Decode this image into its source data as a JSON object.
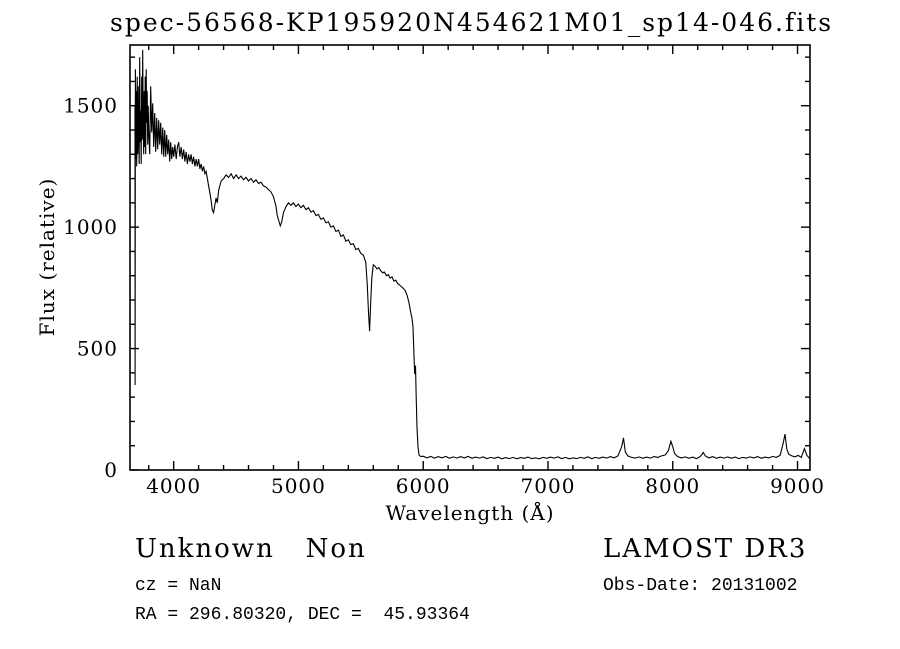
{
  "title": "spec-56568-KP195920N454621M01_sp14-046.fits",
  "axes": {
    "xlabel": "Wavelength (Å)",
    "ylabel": "Flux (relative)"
  },
  "annotations": {
    "object_class": "Unknown   Non",
    "cz": "cz = NaN",
    "ra_dec": "RA = 296.80320, DEC =  45.93364",
    "survey": "LAMOST DR3",
    "obs_date": "Obs-Date: 20131002"
  },
  "chart_data": {
    "type": "line",
    "title": "spec-56568-KP195920N454621M01_sp14-046.fits",
    "xlabel": "Wavelength (Å)",
    "ylabel": "Flux (relative)",
    "xlim": [
      3650,
      9100
    ],
    "ylim": [
      0,
      1750
    ],
    "grid": false,
    "legend": "none",
    "line_color": "#000000",
    "x_major_ticks": [
      4000,
      5000,
      6000,
      7000,
      8000,
      9000
    ],
    "x_minor_step": 200,
    "y_major_ticks": [
      0,
      500,
      1000,
      1500
    ],
    "y_minor_step": 100,
    "points": [
      [
        3690,
        1500
      ],
      [
        3691,
        350
      ],
      [
        3693,
        1650
      ],
      [
        3697,
        1280
      ],
      [
        3700,
        1560
      ],
      [
        3704,
        1250
      ],
      [
        3708,
        1620
      ],
      [
        3712,
        1300
      ],
      [
        3716,
        1580
      ],
      [
        3720,
        1380
      ],
      [
        3724,
        1260
      ],
      [
        3728,
        1700
      ],
      [
        3732,
        1350
      ],
      [
        3736,
        1480
      ],
      [
        3740,
        1260
      ],
      [
        3744,
        1620
      ],
      [
        3748,
        1360
      ],
      [
        3752,
        1730
      ],
      [
        3756,
        1420
      ],
      [
        3760,
        1300
      ],
      [
        3764,
        1560
      ],
      [
        3768,
        1330
      ],
      [
        3772,
        1620
      ],
      [
        3776,
        1300
      ],
      [
        3780,
        1650
      ],
      [
        3784,
        1430
      ],
      [
        3788,
        1560
      ],
      [
        3792,
        1340
      ],
      [
        3796,
        1500
      ],
      [
        3800,
        1400
      ],
      [
        3808,
        1300
      ],
      [
        3816,
        1580
      ],
      [
        3824,
        1390
      ],
      [
        3832,
        1510
      ],
      [
        3840,
        1330
      ],
      [
        3848,
        1470
      ],
      [
        3856,
        1310
      ],
      [
        3864,
        1450
      ],
      [
        3872,
        1320
      ],
      [
        3880,
        1440
      ],
      [
        3888,
        1340
      ],
      [
        3896,
        1430
      ],
      [
        3904,
        1300
      ],
      [
        3912,
        1410
      ],
      [
        3920,
        1290
      ],
      [
        3928,
        1400
      ],
      [
        3936,
        1290
      ],
      [
        3944,
        1380
      ],
      [
        3952,
        1300
      ],
      [
        3960,
        1360
      ],
      [
        3968,
        1270
      ],
      [
        3976,
        1350
      ],
      [
        3984,
        1280
      ],
      [
        3992,
        1330
      ],
      [
        4000,
        1290
      ],
      [
        4010,
        1340
      ],
      [
        4020,
        1280
      ],
      [
        4030,
        1330
      ],
      [
        4040,
        1350
      ],
      [
        4050,
        1290
      ],
      [
        4060,
        1330
      ],
      [
        4070,
        1280
      ],
      [
        4080,
        1320
      ],
      [
        4090,
        1270
      ],
      [
        4100,
        1310
      ],
      [
        4110,
        1260
      ],
      [
        4120,
        1300
      ],
      [
        4130,
        1270
      ],
      [
        4140,
        1300
      ],
      [
        4150,
        1260
      ],
      [
        4160,
        1290
      ],
      [
        4170,
        1250
      ],
      [
        4180,
        1280
      ],
      [
        4190,
        1250
      ],
      [
        4200,
        1280
      ],
      [
        4210,
        1240
      ],
      [
        4220,
        1260
      ],
      [
        4230,
        1230
      ],
      [
        4240,
        1250
      ],
      [
        4250,
        1220
      ],
      [
        4260,
        1230
      ],
      [
        4270,
        1200
      ],
      [
        4280,
        1170
      ],
      [
        4290,
        1140
      ],
      [
        4300,
        1110
      ],
      [
        4310,
        1070
      ],
      [
        4320,
        1060
      ],
      [
        4330,
        1090
      ],
      [
        4340,
        1120
      ],
      [
        4350,
        1100
      ],
      [
        4360,
        1150
      ],
      [
        4370,
        1170
      ],
      [
        4380,
        1190
      ],
      [
        4400,
        1200
      ],
      [
        4420,
        1215
      ],
      [
        4440,
        1205
      ],
      [
        4460,
        1220
      ],
      [
        4480,
        1200
      ],
      [
        4500,
        1215
      ],
      [
        4520,
        1200
      ],
      [
        4540,
        1210
      ],
      [
        4560,
        1195
      ],
      [
        4580,
        1205
      ],
      [
        4600,
        1190
      ],
      [
        4620,
        1200
      ],
      [
        4640,
        1185
      ],
      [
        4660,
        1195
      ],
      [
        4680,
        1180
      ],
      [
        4700,
        1185
      ],
      [
        4720,
        1170
      ],
      [
        4740,
        1165
      ],
      [
        4760,
        1155
      ],
      [
        4780,
        1145
      ],
      [
        4800,
        1125
      ],
      [
        4820,
        1085
      ],
      [
        4830,
        1050
      ],
      [
        4840,
        1030
      ],
      [
        4855,
        1005
      ],
      [
        4865,
        1020
      ],
      [
        4880,
        1060
      ],
      [
        4900,
        1085
      ],
      [
        4920,
        1100
      ],
      [
        4940,
        1090
      ],
      [
        4960,
        1100
      ],
      [
        4980,
        1085
      ],
      [
        5000,
        1095
      ],
      [
        5020,
        1080
      ],
      [
        5040,
        1090
      ],
      [
        5060,
        1072
      ],
      [
        5080,
        1080
      ],
      [
        5100,
        1062
      ],
      [
        5120,
        1068
      ],
      [
        5140,
        1048
      ],
      [
        5160,
        1052
      ],
      [
        5180,
        1032
      ],
      [
        5200,
        1038
      ],
      [
        5220,
        1018
      ],
      [
        5240,
        1022
      ],
      [
        5260,
        1000
      ],
      [
        5280,
        1005
      ],
      [
        5300,
        982
      ],
      [
        5320,
        988
      ],
      [
        5340,
        962
      ],
      [
        5360,
        968
      ],
      [
        5380,
        942
      ],
      [
        5400,
        948
      ],
      [
        5420,
        928
      ],
      [
        5440,
        932
      ],
      [
        5460,
        908
      ],
      [
        5480,
        912
      ],
      [
        5500,
        892
      ],
      [
        5520,
        885
      ],
      [
        5540,
        855
      ],
      [
        5552,
        760
      ],
      [
        5562,
        640
      ],
      [
        5570,
        572
      ],
      [
        5578,
        680
      ],
      [
        5588,
        790
      ],
      [
        5600,
        845
      ],
      [
        5615,
        838
      ],
      [
        5630,
        828
      ],
      [
        5645,
        833
      ],
      [
        5660,
        820
      ],
      [
        5675,
        812
      ],
      [
        5690,
        815
      ],
      [
        5705,
        800
      ],
      [
        5720,
        805
      ],
      [
        5735,
        790
      ],
      [
        5750,
        795
      ],
      [
        5765,
        778
      ],
      [
        5780,
        782
      ],
      [
        5795,
        768
      ],
      [
        5810,
        762
      ],
      [
        5825,
        755
      ],
      [
        5840,
        748
      ],
      [
        5855,
        740
      ],
      [
        5870,
        720
      ],
      [
        5885,
        690
      ],
      [
        5900,
        650
      ],
      [
        5910,
        625
      ],
      [
        5918,
        590
      ],
      [
        5925,
        480
      ],
      [
        5932,
        395
      ],
      [
        5938,
        430
      ],
      [
        5944,
        300
      ],
      [
        5950,
        175
      ],
      [
        5958,
        95
      ],
      [
        5966,
        62
      ],
      [
        5980,
        55
      ],
      [
        6000,
        57
      ],
      [
        6030,
        50
      ],
      [
        6060,
        56
      ],
      [
        6090,
        49
      ],
      [
        6120,
        55
      ],
      [
        6150,
        50
      ],
      [
        6180,
        56
      ],
      [
        6210,
        48
      ],
      [
        6240,
        54
      ],
      [
        6270,
        49
      ],
      [
        6300,
        55
      ],
      [
        6330,
        50
      ],
      [
        6360,
        56
      ],
      [
        6390,
        48
      ],
      [
        6420,
        53
      ],
      [
        6450,
        49
      ],
      [
        6480,
        54
      ],
      [
        6510,
        47
      ],
      [
        6540,
        52
      ],
      [
        6570,
        48
      ],
      [
        6600,
        53
      ],
      [
        6630,
        46
      ],
      [
        6660,
        51
      ],
      [
        6690,
        47
      ],
      [
        6720,
        52
      ],
      [
        6750,
        46
      ],
      [
        6780,
        51
      ],
      [
        6810,
        48
      ],
      [
        6840,
        53
      ],
      [
        6870,
        47
      ],
      [
        6900,
        50
      ],
      [
        6930,
        46
      ],
      [
        6960,
        52
      ],
      [
        6990,
        48
      ],
      [
        7020,
        53
      ],
      [
        7050,
        49
      ],
      [
        7080,
        54
      ],
      [
        7110,
        47
      ],
      [
        7140,
        52
      ],
      [
        7170,
        46
      ],
      [
        7200,
        50
      ],
      [
        7230,
        47
      ],
      [
        7260,
        52
      ],
      [
        7290,
        48
      ],
      [
        7320,
        54
      ],
      [
        7350,
        47
      ],
      [
        7380,
        52
      ],
      [
        7410,
        48
      ],
      [
        7440,
        53
      ],
      [
        7470,
        49
      ],
      [
        7500,
        55
      ],
      [
        7530,
        50
      ],
      [
        7560,
        58
      ],
      [
        7590,
        95
      ],
      [
        7605,
        132
      ],
      [
        7620,
        75
      ],
      [
        7640,
        58
      ],
      [
        7670,
        52
      ],
      [
        7700,
        49
      ],
      [
        7730,
        54
      ],
      [
        7760,
        48
      ],
      [
        7790,
        53
      ],
      [
        7820,
        49
      ],
      [
        7850,
        55
      ],
      [
        7880,
        52
      ],
      [
        7910,
        58
      ],
      [
        7940,
        62
      ],
      [
        7965,
        80
      ],
      [
        7985,
        118
      ],
      [
        8000,
        95
      ],
      [
        8015,
        68
      ],
      [
        8040,
        55
      ],
      [
        8070,
        50
      ],
      [
        8100,
        54
      ],
      [
        8130,
        48
      ],
      [
        8160,
        53
      ],
      [
        8190,
        47
      ],
      [
        8220,
        55
      ],
      [
        8245,
        72
      ],
      [
        8260,
        58
      ],
      [
        8290,
        50
      ],
      [
        8320,
        55
      ],
      [
        8350,
        48
      ],
      [
        8380,
        53
      ],
      [
        8410,
        49
      ],
      [
        8440,
        54
      ],
      [
        8470,
        48
      ],
      [
        8500,
        53
      ],
      [
        8530,
        47
      ],
      [
        8560,
        52
      ],
      [
        8590,
        49
      ],
      [
        8620,
        54
      ],
      [
        8650,
        50
      ],
      [
        8680,
        55
      ],
      [
        8710,
        48
      ],
      [
        8740,
        53
      ],
      [
        8770,
        50
      ],
      [
        8800,
        56
      ],
      [
        8830,
        52
      ],
      [
        8860,
        60
      ],
      [
        8885,
        110
      ],
      [
        8900,
        148
      ],
      [
        8915,
        85
      ],
      [
        8930,
        65
      ],
      [
        8955,
        58
      ],
      [
        8980,
        54
      ],
      [
        9005,
        60
      ],
      [
        9030,
        52
      ],
      [
        9055,
        88
      ],
      [
        9075,
        60
      ],
      [
        9095,
        48
      ]
    ]
  }
}
